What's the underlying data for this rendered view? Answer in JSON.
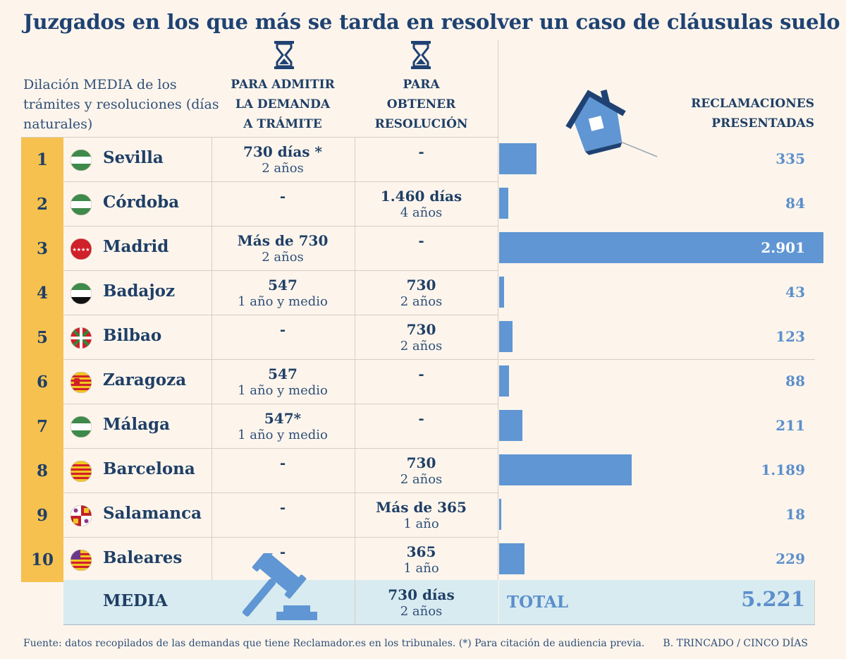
{
  "title": "Juzgados en los que más se tarda en resolver un caso de cláusulas suelo",
  "header": {
    "description": "Dilación MEDIA de los trámites y resoluciones (días naturales)",
    "col_admitir": "PARA ADMITIR\nLA DEMANDA\nA TRÁMITE",
    "col_resolucion": "PARA\nOBTENER\nRESOLUCIÓN",
    "col_reclamaciones": "RECLAMACIONES\nPRESENTADAS"
  },
  "rows": [
    {
      "rank": "1",
      "city": "Sevilla",
      "admitir": {
        "main": "730 días *",
        "sub": "2 años"
      },
      "resolucion": {
        "main": "-",
        "sub": ""
      },
      "reclamaciones": "335",
      "reclamaciones_num": 335,
      "flag": "andalucia-flag-icon"
    },
    {
      "rank": "2",
      "city": "Córdoba",
      "admitir": {
        "main": "-",
        "sub": ""
      },
      "resolucion": {
        "main": "1.460 días",
        "sub": "4 años"
      },
      "reclamaciones": "84",
      "reclamaciones_num": 84,
      "flag": "andalucia-flag-icon"
    },
    {
      "rank": "3",
      "city": "Madrid",
      "admitir": {
        "main": "Más de 730",
        "sub": "2 años"
      },
      "resolucion": {
        "main": "-",
        "sub": ""
      },
      "reclamaciones": "2.901",
      "reclamaciones_num": 2901,
      "flag": "madrid-flag-icon"
    },
    {
      "rank": "4",
      "city": "Badajoz",
      "admitir": {
        "main": "547",
        "sub": "1 año y medio"
      },
      "resolucion": {
        "main": "730",
        "sub": "2 años"
      },
      "reclamaciones": "43",
      "reclamaciones_num": 43,
      "flag": "extremadura-flag-icon"
    },
    {
      "rank": "5",
      "city": "Bilbao",
      "admitir": {
        "main": "-",
        "sub": ""
      },
      "resolucion": {
        "main": "730",
        "sub": "2 años"
      },
      "reclamaciones": "123",
      "reclamaciones_num": 123,
      "flag": "pais-vasco-flag-icon"
    },
    {
      "rank": "6",
      "city": "Zaragoza",
      "admitir": {
        "main": "547",
        "sub": "1 año y medio"
      },
      "resolucion": {
        "main": "-",
        "sub": ""
      },
      "reclamaciones": "88",
      "reclamaciones_num": 88,
      "flag": "aragon-flag-icon"
    },
    {
      "rank": "7",
      "city": "Málaga",
      "admitir": {
        "main": "547*",
        "sub": "1 año y medio"
      },
      "resolucion": {
        "main": "-",
        "sub": ""
      },
      "reclamaciones": "211",
      "reclamaciones_num": 211,
      "flag": "andalucia-flag-icon"
    },
    {
      "rank": "8",
      "city": "Barcelona",
      "admitir": {
        "main": "-",
        "sub": ""
      },
      "resolucion": {
        "main": "730",
        "sub": "2 años"
      },
      "reclamaciones": "1.189",
      "reclamaciones_num": 1189,
      "flag": "cataluna-flag-icon"
    },
    {
      "rank": "9",
      "city": "Salamanca",
      "admitir": {
        "main": "-",
        "sub": ""
      },
      "resolucion": {
        "main": "Más de 365",
        "sub": "1 año"
      },
      "reclamaciones": "18",
      "reclamaciones_num": 18,
      "flag": "castilla-leon-flag-icon"
    },
    {
      "rank": "10",
      "city": "Baleares",
      "admitir": {
        "main": "-",
        "sub": ""
      },
      "resolucion": {
        "main": "365",
        "sub": "1 año"
      },
      "reclamaciones": "229",
      "reclamaciones_num": 229,
      "flag": "baleares-flag-icon"
    }
  ],
  "media": {
    "label": "MEDIA",
    "resolucion_main": "730 días",
    "resolucion_sub": "2 años"
  },
  "total": {
    "label": "TOTAL",
    "value": "5.221"
  },
  "footer": {
    "source": "Fuente: datos recopilados de las demandas que tiene Reclamador.es en los tribunales. (*) Para citación de audiencia previa.",
    "credit": "B. TRINCADO / CINCO DÍAS"
  },
  "colors": {
    "rank_bg": "#f6c14e",
    "bar": "#5f96d3",
    "title": "#1f4272",
    "total_bg": "#d8ebf0",
    "background": "#fdf5ec"
  }
}
